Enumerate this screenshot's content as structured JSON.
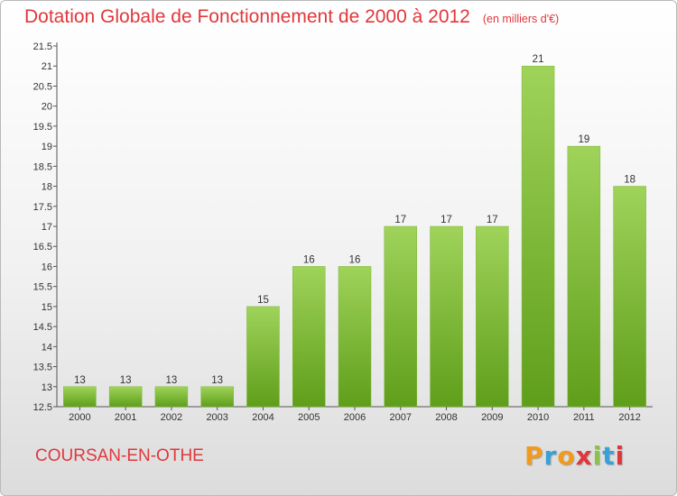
{
  "title": "Dotation Globale de Fonctionnement de 2000 à 2012",
  "unit": "(en milliers d'€)",
  "commune": "COURSAN-EN-OTHE",
  "logo": {
    "letters": [
      "P",
      "r",
      "o",
      "x",
      "i",
      "t",
      "i"
    ],
    "colors": [
      "#f29a1d",
      "#3aa0d8",
      "#f29a1d",
      "#e0373b",
      "#8bc34a",
      "#3aa0d8",
      "#e0373b"
    ]
  },
  "chart_data": {
    "type": "bar",
    "title": "Dotation Globale de Fonctionnement de 2000 à 2012",
    "categories": [
      "2000",
      "2001",
      "2002",
      "2003",
      "2004",
      "2005",
      "2006",
      "2007",
      "2008",
      "2009",
      "2010",
      "2011",
      "2012"
    ],
    "values": [
      13,
      13,
      13,
      13,
      15,
      16,
      16,
      17,
      17,
      17,
      21,
      19,
      18
    ],
    "ylim": [
      12.5,
      21.5
    ],
    "yticks": [
      12.5,
      13,
      13.5,
      14,
      14.5,
      15,
      15.5,
      16,
      16.5,
      17,
      17.5,
      18,
      18.5,
      19,
      19.5,
      20,
      20.5,
      21,
      21.5
    ],
    "grid": false,
    "bar_color_top": "#9fd35a",
    "bar_color_bottom": "#5f9e1a"
  }
}
